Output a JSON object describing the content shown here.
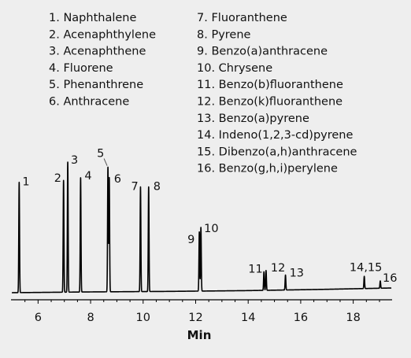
{
  "chart_data": {
    "type": "line",
    "title": "",
    "xlabel": "Min",
    "ylabel": "",
    "xlim": [
      5.0,
      19.45
    ],
    "ylim": [
      0,
      100
    ],
    "x_ticks": [
      6,
      8,
      10,
      12,
      14,
      16,
      18
    ],
    "grid": false,
    "legend_position": "top",
    "colors": {
      "trace": "#000000",
      "text": "#111111",
      "background": "#eeeeee"
    },
    "legend": {
      "left_column": [
        "1. Naphthalene",
        "2. Acenaphthylene",
        "3. Acenaphthene",
        "4. Fluorene",
        "5. Phenanthrene",
        "6. Anthracene"
      ],
      "right_column": [
        "7. Fluoranthene",
        "8. Pyrene",
        "9. Benzo(a)anthracene",
        "10. Chrysene",
        "11. Benzo(b)fluoranthene",
        "12. Benzo(k)fluoranthene",
        "13. Benzo(a)pyrene",
        "14. Indeno(1,2,3-cd)pyrene",
        "15. Dibenzo(a,h)anthracene",
        "16. Benzo(g,h,i)perylene"
      ]
    },
    "baseline": [
      {
        "x": 5.0,
        "y": 0.0
      },
      {
        "x": 8.0,
        "y": 0.6
      },
      {
        "x": 11.0,
        "y": 1.0
      },
      {
        "x": 14.0,
        "y": 1.6
      },
      {
        "x": 17.0,
        "y": 2.6
      },
      {
        "x": 19.45,
        "y": 3.6
      }
    ],
    "peaks": [
      {
        "label": "1",
        "x": 5.28,
        "y": 84.5
      },
      {
        "label": "2",
        "x": 6.97,
        "y": 86.0
      },
      {
        "label": "3",
        "x": 7.13,
        "y": 100.0
      },
      {
        "label": "4",
        "x": 7.62,
        "y": 88.0
      },
      {
        "label": "",
        "x": 8.66,
        "y": 96.0
      },
      {
        "label": "6",
        "x": 8.71,
        "y": 88.0
      },
      {
        "label": "7",
        "x": 9.9,
        "y": 81.0
      },
      {
        "label": "8",
        "x": 10.21,
        "y": 81.0
      },
      {
        "label": "9",
        "x": 12.14,
        "y": 46.5
      },
      {
        "label": "10",
        "x": 12.2,
        "y": 50.0
      },
      {
        "label": "11",
        "x": 14.6,
        "y": 16.0
      },
      {
        "label": "12",
        "x": 14.68,
        "y": 17.0
      },
      {
        "label": "13",
        "x": 15.42,
        "y": 13.5
      },
      {
        "label": "",
        "x": 18.42,
        "y": 12.5
      },
      {
        "label": "16",
        "x": 19.03,
        "y": 9.0
      }
    ],
    "annotations": [
      {
        "label": "5",
        "x": 8.6,
        "y": 101.5
      },
      {
        "label": "14,15",
        "x": 18.42,
        "y": 13.0
      }
    ]
  }
}
